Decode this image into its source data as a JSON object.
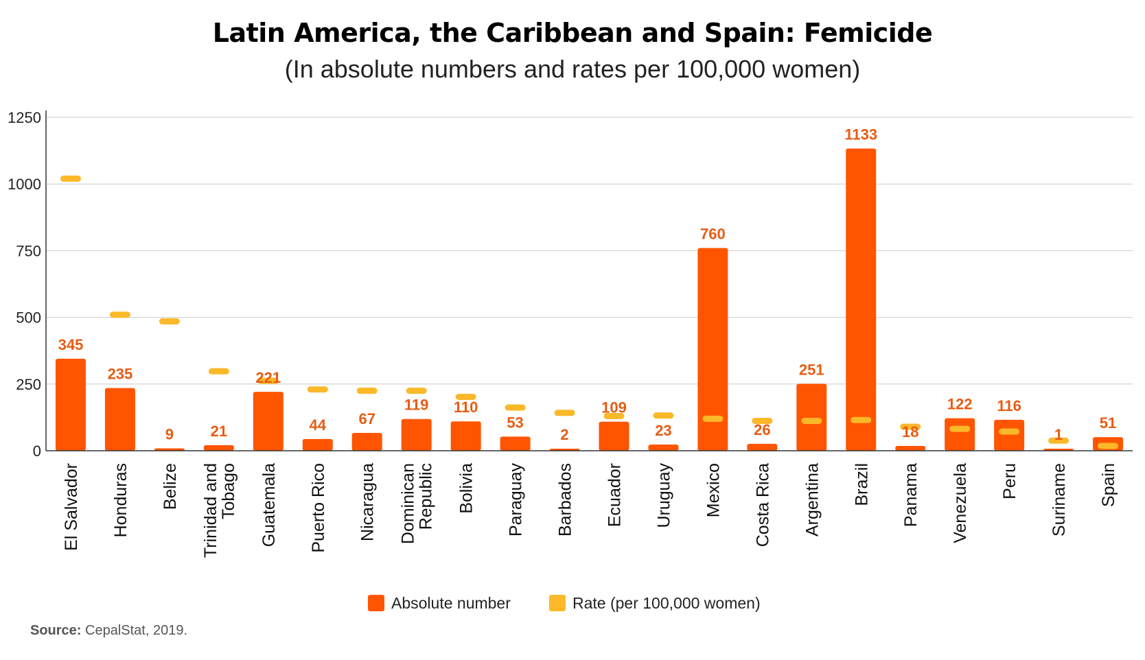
{
  "chart_data": {
    "type": "bar",
    "title": "Latin America, the Caribbean and Spain: Femicide",
    "subtitle": "(In absolute numbers and rates per 100,000 women)",
    "xlabel": "",
    "ylabel": "",
    "ylim": [
      0,
      1250
    ],
    "yticks": [
      "0",
      "250",
      "500",
      "750",
      "1000",
      "1250"
    ],
    "grid": true,
    "legend_position": "bottom-center",
    "categories": [
      "El Salvador",
      "Honduras",
      "Belize",
      "Trinidad and Tobago",
      "Guatemala",
      "Puerto Rico",
      "Nicaragua",
      "Dominican Republic",
      "Bolivia",
      "Paraguay",
      "Barbados",
      "Ecuador",
      "Uruguay",
      "Mexico",
      "Costa Rica",
      "Argentina",
      "Brazil",
      "Panama",
      "Venezuela",
      "Peru",
      "Suriname",
      "Spain"
    ],
    "category_lines": [
      [
        "El Salvador"
      ],
      [
        "Honduras"
      ],
      [
        "Belize"
      ],
      [
        "Trinidad and",
        "Tobago"
      ],
      [
        "Guatemala"
      ],
      [
        "Puerto Rico"
      ],
      [
        "Nicaragua"
      ],
      [
        "Dominican",
        "Republic"
      ],
      [
        "Bolivia"
      ],
      [
        "Paraguay"
      ],
      [
        "Barbados"
      ],
      [
        "Ecuador"
      ],
      [
        "Uruguay"
      ],
      [
        "Mexico"
      ],
      [
        "Costa Rica"
      ],
      [
        "Argentina"
      ],
      [
        "Brazil"
      ],
      [
        "Panama"
      ],
      [
        "Venezuela"
      ],
      [
        "Peru"
      ],
      [
        "Suriname"
      ],
      [
        "Spain"
      ]
    ],
    "series": [
      {
        "name": "Absolute number",
        "color": "#FF5500",
        "values": [
          345,
          235,
          9,
          21,
          221,
          44,
          67,
          119,
          110,
          53,
          2,
          109,
          23,
          760,
          26,
          251,
          1133,
          18,
          122,
          116,
          1,
          51
        ],
        "labels": [
          "345",
          "235",
          "9",
          "21",
          "221",
          "44",
          "67",
          "119",
          "110",
          "53",
          "2",
          "109",
          "23",
          "760",
          "26",
          "251",
          "1133",
          "18",
          "122",
          "116",
          "1",
          "51"
        ]
      },
      {
        "name": "Rate (per 100,000 women)",
        "color": "#FBB829",
        "marker": "dash",
        "values_on_left_axis": [
          1020,
          510,
          485,
          298,
          262,
          230,
          225,
          225,
          202,
          162,
          142,
          130,
          132,
          120,
          112,
          112,
          115,
          90,
          82,
          72,
          38,
          18
        ]
      }
    ],
    "label_color": "#E85C12",
    "gridline_color": "#cccccc"
  },
  "source": {
    "prefix": "Source:",
    "text": " CepalStat, 2019."
  }
}
